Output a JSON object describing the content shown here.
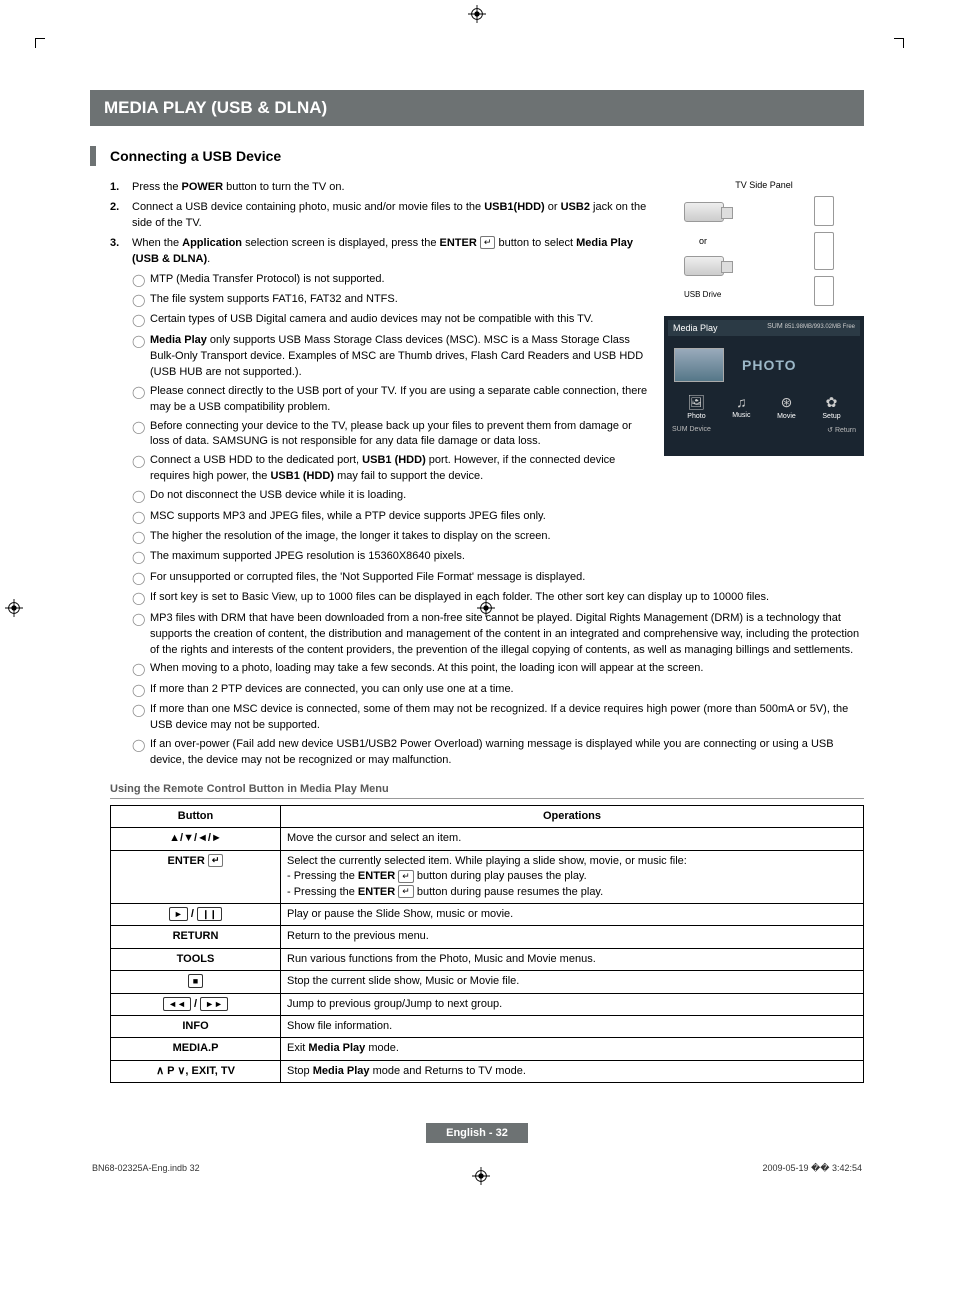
{
  "chapter_title": "MEDIA PLAY (USB & DLNA)",
  "section_title": "Connecting a USB Device",
  "steps": [
    {
      "num": "1.",
      "text": "Press the <b>POWER</b> button to turn the TV on."
    },
    {
      "num": "2.",
      "text": "Connect a USB device containing photo, music and/or movie files to the <b>USB1(HDD)</b> or <b>USB2</b> jack on the side of the TV."
    },
    {
      "num": "3.",
      "text": "When the <b>Application</b> selection screen is displayed, press the <b>ENTER</b> <span class='enter-icon'>↵</span> button to select <b>Media Play (USB & DLNA)</b>."
    }
  ],
  "notes": [
    "MTP (Media Transfer Protocol) is not supported.",
    "The file system supports FAT16, FAT32 and NTFS.",
    "Certain types of USB Digital camera and audio devices may not be compatible with this TV.",
    "<b>Media Play</b> only supports USB Mass Storage Class devices (MSC). MSC is a Mass Storage Class Bulk-Only Transport device. Examples of MSC are Thumb drives, Flash Card Readers and USB HDD (USB HUB are not supported.).",
    "Please connect directly to the USB port of your TV. If you are using a separate cable connection, there may be a USB compatibility problem.",
    "Before connecting your device to the TV, please back up your files to prevent them from damage or loss of data. SAMSUNG is not responsible for any data file damage or data loss.",
    "Connect a USB HDD to the dedicated port, <b>USB1 (HDD)</b> port. However, if the connected device requires high power, the <b>USB1 (HDD)</b> may fail to support the device.",
    "Do not disconnect the USB device while it is loading.",
    "MSC supports MP3 and JPEG files, while a PTP device supports JPEG files only.",
    "The higher the resolution of the image, the longer it takes to display on the screen.",
    "The maximum supported JPEG resolution is 15360X8640 pixels.",
    "For unsupported or corrupted files, the 'Not Supported File Format' message is displayed.",
    "If sort key is set to Basic View, up to 1000 files can be displayed in each folder. The other sort key can display up to 10000 files.",
    "MP3 files with DRM that have been downloaded from a non-free site cannot be played. Digital Rights Management (DRM) is a technology that supports the creation of content, the distribution and management of the content in an integrated and comprehensive way, including the protection of the rights and interests of the content providers, the prevention of the illegal copying of contents, as well as managing billings and settlements.",
    "When moving to a photo, loading may take a few seconds. At this point, the loading icon will appear at the screen.",
    "If more than 2 PTP devices are connected, you can only use one at a time.",
    "If more than one MSC device is connected, some of them may not be recognized. If a device requires high power (more than 500mA or 5V), the USB device may not be supported.",
    "If an over-power (Fail add new device USB1/USB2 Power Overload) warning message is displayed while you are connecting or using a USB device, the device may not be recognized or may malfunction."
  ],
  "tv_panel_label": "TV Side Panel",
  "or_label": "or",
  "usb_drive_label": "USB Drive",
  "media_screenshot": {
    "header": "Media Play",
    "sum_label": "SUM",
    "storage": "851.98MB/993.02MB Free",
    "photo_label": "PHOTO",
    "icons": [
      {
        "glyph": "🖼",
        "label": "Photo"
      },
      {
        "glyph": "♫",
        "label": "Music"
      },
      {
        "glyph": "⊛",
        "label": "Movie"
      },
      {
        "glyph": "✿",
        "label": "Setup"
      }
    ],
    "footer_left": "SUM    Device",
    "footer_right": "↺ Return"
  },
  "subsection_title": "Using the Remote Control Button in Media Play Menu",
  "table": {
    "headers": [
      "Button",
      "Operations"
    ],
    "rows": [
      {
        "button_html": "▲/▼/◄/►",
        "op": "Move the cursor and select an item."
      },
      {
        "button_html": "ENTER <span class='enter-icon'>↵</span>",
        "op": "Select the currently selected item. While playing a slide show, movie, or music file:<br>- Pressing the <b>ENTER</b> <span class='enter-icon'>↵</span> button during play pauses the play.<br>- Pressing the <b>ENTER</b> <span class='enter-icon'>↵</span> button during pause resumes the play."
      },
      {
        "button_html": "<span class='btn-box'>►</span> / <span class='btn-box'>❙❙</span>",
        "op": "Play or pause the Slide Show, music or movie."
      },
      {
        "button_html": "RETURN",
        "op": "Return to the previous menu."
      },
      {
        "button_html": "TOOLS",
        "op": "Run various functions from the Photo, Music and Movie menus."
      },
      {
        "button_html": "<span class='btn-box'>■</span>",
        "op": "Stop the current slide show, Music or Movie file."
      },
      {
        "button_html": "<span class='btn-box'>◄◄</span> / <span class='btn-box'>►►</span>",
        "op": "Jump to previous group/Jump to next group."
      },
      {
        "button_html": "INFO",
        "op": "Show file information."
      },
      {
        "button_html": "MEDIA.P",
        "op": "Exit <b>Media Play</b> mode."
      },
      {
        "button_html": "∧ P ∨, EXIT, TV",
        "op": "Stop <b>Media Play</b> mode and Returns to TV mode."
      }
    ]
  },
  "page_lang": "English - 32",
  "print_file": "BN68-02325A-Eng.indb   32",
  "print_time": "2009-05-19   �� 3:42:54",
  "colors": {
    "bar_bg": "#6d7273",
    "screenshot_bg": "#1a2530",
    "photo_label": "#9cb8c8"
  }
}
